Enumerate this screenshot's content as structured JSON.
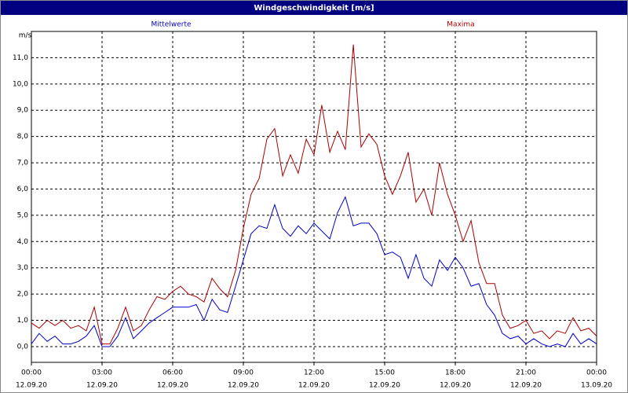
{
  "chart_data": {
    "type": "line",
    "title": "Windgeschwindigkeit [m/s]",
    "y_label": "m/s",
    "x": [
      0,
      0.33,
      0.67,
      1,
      1.33,
      1.67,
      2,
      2.33,
      2.67,
      3,
      3.33,
      3.67,
      4,
      4.33,
      4.67,
      5,
      5.33,
      5.67,
      6,
      6.33,
      6.67,
      7,
      7.33,
      7.67,
      8,
      8.33,
      8.67,
      9,
      9.33,
      9.67,
      10,
      10.33,
      10.67,
      11,
      11.33,
      11.67,
      12,
      12.33,
      12.67,
      13,
      13.33,
      13.67,
      14,
      14.33,
      14.67,
      15,
      15.33,
      15.67,
      16,
      16.33,
      16.67,
      17,
      17.33,
      17.67,
      18,
      18.33,
      18.67,
      19,
      19.33,
      19.67,
      20,
      20.33,
      20.67,
      21,
      21.33,
      21.67,
      22,
      22.33,
      22.67,
      23,
      23.33,
      23.67,
      24
    ],
    "series": [
      {
        "name": "Mittelwerte",
        "color": "#0000cc",
        "values": [
          0.1,
          0.5,
          0.2,
          0.4,
          0.1,
          0.1,
          0.2,
          0.4,
          0.8,
          0,
          0,
          0.4,
          1.1,
          0.3,
          0.6,
          0.9,
          1.1,
          1.3,
          1.5,
          1.5,
          1.5,
          1.6,
          1.0,
          1.8,
          1.4,
          1.3,
          2.3,
          3.3,
          4.3,
          4.6,
          4.5,
          5.4,
          4.5,
          4.2,
          4.6,
          4.3,
          4.7,
          4.4,
          4.1,
          5.1,
          5.7,
          4.6,
          4.7,
          4.7,
          4.3,
          3.5,
          3.6,
          3.4,
          2.6,
          3.5,
          2.6,
          2.3,
          3.3,
          2.9,
          3.4,
          3.0,
          2.3,
          2.4,
          1.6,
          1.2,
          0.5,
          0.3,
          0.4,
          0.1,
          0.3,
          0.1,
          0,
          0.1,
          0,
          0.5,
          0.1,
          0.3,
          0.1
        ]
      },
      {
        "name": "Maxima",
        "color": "#aa0000",
        "values": [
          0.9,
          0.7,
          1.0,
          0.8,
          1.0,
          0.7,
          0.8,
          0.6,
          1.5,
          0.1,
          0.1,
          0.7,
          1.5,
          0.6,
          0.8,
          1.4,
          1.9,
          1.8,
          2.1,
          2.3,
          2.0,
          1.9,
          1.7,
          2.6,
          2.2,
          1.9,
          2.9,
          4.5,
          5.8,
          6.4,
          7.9,
          8.3,
          6.5,
          7.3,
          6.6,
          7.9,
          7.3,
          9.2,
          7.4,
          8.2,
          7.5,
          11.5,
          7.6,
          8.1,
          7.7,
          6.5,
          5.8,
          6.5,
          7.4,
          5.5,
          6.0,
          5.0,
          7.0,
          5.8,
          5.0,
          4.0,
          4.8,
          3.2,
          2.4,
          2.4,
          1.2,
          0.7,
          0.8,
          1.0,
          0.5,
          0.6,
          0.3,
          0.6,
          0.5,
          1.1,
          0.6,
          0.7,
          0.4
        ]
      }
    ],
    "xlim": [
      0,
      24
    ],
    "xticks": [
      {
        "value": 0,
        "label": "00:00",
        "date": "12.09.20"
      },
      {
        "value": 3,
        "label": "03:00",
        "date": "12.09.20"
      },
      {
        "value": 6,
        "label": "06:00",
        "date": "12.09.20"
      },
      {
        "value": 9,
        "label": "09:00",
        "date": "12.09.20"
      },
      {
        "value": 12,
        "label": "12:00",
        "date": "12.09.20"
      },
      {
        "value": 15,
        "label": "15:00",
        "date": "12.09.20"
      },
      {
        "value": 18,
        "label": "18:00",
        "date": "12.09.20"
      },
      {
        "value": 21,
        "label": "21:00",
        "date": "12.09.20"
      },
      {
        "value": 24,
        "label": "00:00",
        "date": "13.09.20"
      }
    ],
    "ylim": [
      -0.6,
      12.0
    ],
    "yticks": [
      {
        "value": 0,
        "label": "0,0"
      },
      {
        "value": 1,
        "label": "1,0"
      },
      {
        "value": 2,
        "label": "2,0"
      },
      {
        "value": 3,
        "label": "3,0"
      },
      {
        "value": 4,
        "label": "4,0"
      },
      {
        "value": 5,
        "label": "5,0"
      },
      {
        "value": 6,
        "label": "6,0"
      },
      {
        "value": 7,
        "label": "7,0"
      },
      {
        "value": 8,
        "label": "8,0"
      },
      {
        "value": 9,
        "label": "9,0"
      },
      {
        "value": 10,
        "label": "10,0"
      },
      {
        "value": 11,
        "label": "11,0"
      }
    ],
    "grid": true
  }
}
